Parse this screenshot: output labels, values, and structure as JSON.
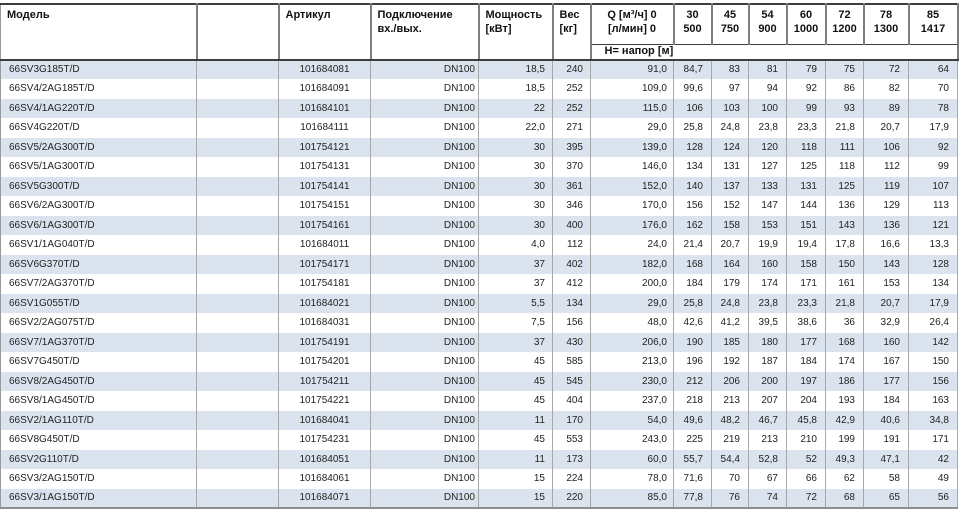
{
  "colors": {
    "row_stripe": "#dbe4ee",
    "grid_line": "#a8a8a8",
    "header_line": "#3d3d3d"
  },
  "table": {
    "header": {
      "model": "Модель",
      "article": "Артикул",
      "connection_line1": "Подключение",
      "connection_line2": "вх./вых.",
      "power_line1": "Мощность",
      "power_line2": "[кВт]",
      "weight_line1": "Вес",
      "weight_line2": "[кг]",
      "flow_line1": "Q [м³/ч] 0",
      "flow_line2": "[л/мин] 0",
      "head_subheader": "H= напор [м]"
    },
    "flow_columns": [
      {
        "m3h": "30",
        "lmin": "500"
      },
      {
        "m3h": "45",
        "lmin": "750"
      },
      {
        "m3h": "54",
        "lmin": "900"
      },
      {
        "m3h": "60",
        "lmin": "1000"
      },
      {
        "m3h": "72",
        "lmin": "1200"
      },
      {
        "m3h": "78",
        "lmin": "1300"
      },
      {
        "m3h": "85",
        "lmin": "1417"
      }
    ],
    "rows": [
      {
        "model": "66SV3G185T/D",
        "article": "101684081",
        "connection": "DN100",
        "power": "18,5",
        "weight": "240",
        "heads": [
          "91,0",
          "84,7",
          "83",
          "81",
          "79",
          "75",
          "72",
          "64"
        ]
      },
      {
        "model": "66SV4/2AG185T/D",
        "article": "101684091",
        "connection": "DN100",
        "power": "18,5",
        "weight": "252",
        "heads": [
          "109,0",
          "99,6",
          "97",
          "94",
          "92",
          "86",
          "82",
          "70"
        ]
      },
      {
        "model": "66SV4/1AG220T/D",
        "article": "101684101",
        "connection": "DN100",
        "power": "22",
        "weight": "252",
        "heads": [
          "115,0",
          "106",
          "103",
          "100",
          "99",
          "93",
          "89",
          "78"
        ]
      },
      {
        "model": "66SV4G220T/D",
        "article": "101684111",
        "connection": "DN100",
        "power": "22,0",
        "weight": "271",
        "heads": [
          "29,0",
          "25,8",
          "24,8",
          "23,8",
          "23,3",
          "21,8",
          "20,7",
          "17,9"
        ]
      },
      {
        "model": "66SV5/2AG300T/D",
        "article": "101754121",
        "connection": "DN100",
        "power": "30",
        "weight": "395",
        "heads": [
          "139,0",
          "128",
          "124",
          "120",
          "118",
          "111",
          "106",
          "92"
        ]
      },
      {
        "model": "66SV5/1AG300T/D",
        "article": "101754131",
        "connection": "DN100",
        "power": "30",
        "weight": "370",
        "heads": [
          "146,0",
          "134",
          "131",
          "127",
          "125",
          "118",
          "112",
          "99"
        ]
      },
      {
        "model": "66SV5G300T/D",
        "article": "101754141",
        "connection": "DN100",
        "power": "30",
        "weight": "361",
        "heads": [
          "152,0",
          "140",
          "137",
          "133",
          "131",
          "125",
          "119",
          "107"
        ]
      },
      {
        "model": "66SV6/2AG300T/D",
        "article": "101754151",
        "connection": "DN100",
        "power": "30",
        "weight": "346",
        "heads": [
          "170,0",
          "156",
          "152",
          "147",
          "144",
          "136",
          "129",
          "113"
        ]
      },
      {
        "model": "66SV6/1AG300T/D",
        "article": "101754161",
        "connection": "DN100",
        "power": "30",
        "weight": "400",
        "heads": [
          "176,0",
          "162",
          "158",
          "153",
          "151",
          "143",
          "136",
          "121"
        ]
      },
      {
        "model": "66SV1/1AG040T/D",
        "article": "101684011",
        "connection": "DN100",
        "power": "4,0",
        "weight": "112",
        "heads": [
          "24,0",
          "21,4",
          "20,7",
          "19,9",
          "19,4",
          "17,8",
          "16,6",
          "13,3"
        ]
      },
      {
        "model": "66SV6G370T/D",
        "article": "101754171",
        "connection": "DN100",
        "power": "37",
        "weight": "402",
        "heads": [
          "182,0",
          "168",
          "164",
          "160",
          "158",
          "150",
          "143",
          "128"
        ]
      },
      {
        "model": "66SV7/2AG370T/D",
        "article": "101754181",
        "connection": "DN100",
        "power": "37",
        "weight": "412",
        "heads": [
          "200,0",
          "184",
          "179",
          "174",
          "171",
          "161",
          "153",
          "134"
        ]
      },
      {
        "model": "66SV1G055T/D",
        "article": "101684021",
        "connection": "DN100",
        "power": "5,5",
        "weight": "134",
        "heads": [
          "29,0",
          "25,8",
          "24,8",
          "23,8",
          "23,3",
          "21,8",
          "20,7",
          "17,9"
        ]
      },
      {
        "model": "66SV2/2AG075T/D",
        "article": "101684031",
        "connection": "DN100",
        "power": "7,5",
        "weight": "156",
        "heads": [
          "48,0",
          "42,6",
          "41,2",
          "39,5",
          "38,6",
          "36",
          "32,9",
          "26,4"
        ]
      },
      {
        "model": "66SV7/1AG370T/D",
        "article": "101754191",
        "connection": "DN100",
        "power": "37",
        "weight": "430",
        "heads": [
          "206,0",
          "190",
          "185",
          "180",
          "177",
          "168",
          "160",
          "142"
        ]
      },
      {
        "model": "66SV7G450T/D",
        "article": "101754201",
        "connection": "DN100",
        "power": "45",
        "weight": "585",
        "heads": [
          "213,0",
          "196",
          "192",
          "187",
          "184",
          "174",
          "167",
          "150"
        ]
      },
      {
        "model": "66SV8/2AG450T/D",
        "article": "101754211",
        "connection": "DN100",
        "power": "45",
        "weight": "545",
        "heads": [
          "230,0",
          "212",
          "206",
          "200",
          "197",
          "186",
          "177",
          "156"
        ]
      },
      {
        "model": "66SV8/1AG450T/D",
        "article": "101754221",
        "connection": "DN100",
        "power": "45",
        "weight": "404",
        "heads": [
          "237,0",
          "218",
          "213",
          "207",
          "204",
          "193",
          "184",
          "163"
        ]
      },
      {
        "model": "66SV2/1AG110T/D",
        "article": "101684041",
        "connection": "DN100",
        "power": "11",
        "weight": "170",
        "heads": [
          "54,0",
          "49,6",
          "48,2",
          "46,7",
          "45,8",
          "42,9",
          "40,6",
          "34,8"
        ]
      },
      {
        "model": "66SV8G450T/D",
        "article": "101754231",
        "connection": "DN100",
        "power": "45",
        "weight": "553",
        "heads": [
          "243,0",
          "225",
          "219",
          "213",
          "210",
          "199",
          "191",
          "171"
        ]
      },
      {
        "model": "66SV2G110T/D",
        "article": "101684051",
        "connection": "DN100",
        "power": "11",
        "weight": "173",
        "heads": [
          "60,0",
          "55,7",
          "54,4",
          "52,8",
          "52",
          "49,3",
          "47,1",
          "42"
        ]
      },
      {
        "model": "66SV3/2AG150T/D",
        "article": "101684061",
        "connection": "DN100",
        "power": "15",
        "weight": "224",
        "heads": [
          "78,0",
          "71,6",
          "70",
          "67",
          "66",
          "62",
          "58",
          "49"
        ]
      },
      {
        "model": "66SV3/1AG150T/D",
        "article": "101684071",
        "connection": "DN100",
        "power": "15",
        "weight": "220",
        "heads": [
          "85,0",
          "77,8",
          "76",
          "74",
          "72",
          "68",
          "65",
          "56"
        ]
      }
    ]
  }
}
